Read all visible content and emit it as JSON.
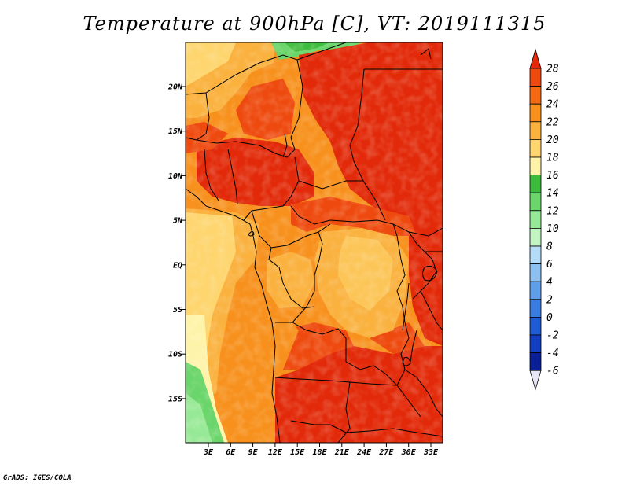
{
  "title": "Temperature at 900hPa [C], VT: 2019111315",
  "credit": "GrADS: IGES/COLA",
  "map": {
    "lat_labels": [
      "20N",
      "15N",
      "10N",
      "5N",
      "EQ",
      "5S",
      "10S",
      "15S"
    ],
    "lon_labels": [
      "3E",
      "6E",
      "9E",
      "12E",
      "15E",
      "18E",
      "21E",
      "24E",
      "27E",
      "30E",
      "33E"
    ]
  },
  "colorbar": {
    "levels": [
      "28",
      "26",
      "24",
      "22",
      "20",
      "18",
      "16",
      "14",
      "12",
      "10",
      "8",
      "6",
      "4",
      "2",
      "0",
      "-2",
      "-4",
      "-6"
    ],
    "colors": [
      "#e22a0a",
      "#ee4a0f",
      "#f46a12",
      "#f7901c",
      "#fab13e",
      "#fed56e",
      "#fff3a9",
      "#3cbb3c",
      "#6ad56a",
      "#96e996",
      "#c3f5c3",
      "#b4dcf6",
      "#8cc0f0",
      "#5f9fe9",
      "#3a7ce0",
      "#1f5bd2",
      "#123ec0",
      "#0a1f96",
      "#e6e6f6"
    ]
  }
}
